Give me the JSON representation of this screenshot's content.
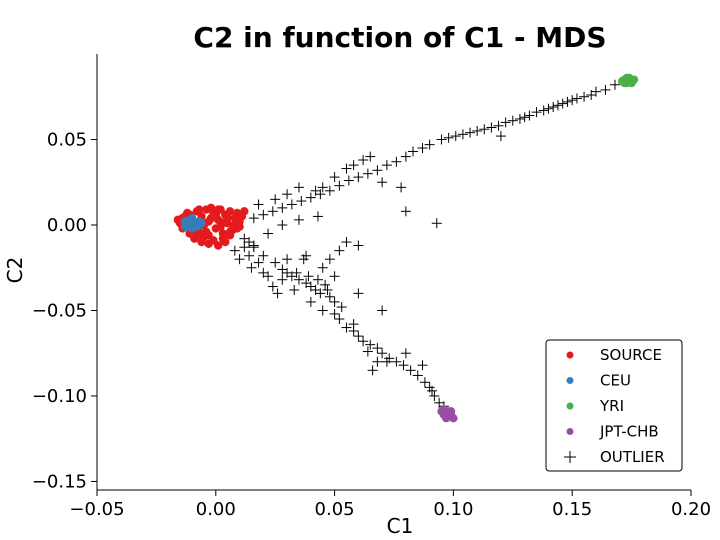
{
  "chart_data": {
    "type": "scatter",
    "title": "C2 in function of C1 - MDS",
    "xlabel": "C1",
    "ylabel": "C2",
    "xlim": [
      -0.05,
      0.2
    ],
    "ylim": [
      -0.155,
      0.1
    ],
    "xticks": [
      {
        "value": -0.05,
        "label": "−0.05"
      },
      {
        "value": 0.0,
        "label": "0.00"
      },
      {
        "value": 0.05,
        "label": "0.05"
      },
      {
        "value": 0.1,
        "label": "0.10"
      },
      {
        "value": 0.15,
        "label": "0.15"
      },
      {
        "value": 0.2,
        "label": "0.20"
      }
    ],
    "yticks": [
      {
        "value": 0.05,
        "label": "0.05"
      },
      {
        "value": 0.0,
        "label": "0.00"
      },
      {
        "value": -0.05,
        "label": "−0.05"
      },
      {
        "value": -0.1,
        "label": "−0.10"
      },
      {
        "value": -0.15,
        "label": "−0.15"
      }
    ],
    "grid": false,
    "legend_position": "bottom-right",
    "series": [
      {
        "name": "SOURCE",
        "marker": "dot",
        "color": "#e41a1c",
        "points": [
          [
            -0.016,
            0.003
          ],
          [
            -0.015,
            0.001
          ],
          [
            -0.014,
            0.004
          ],
          [
            -0.013,
            -0.001
          ],
          [
            -0.012,
            0.002
          ],
          [
            -0.011,
            0.006
          ],
          [
            -0.01,
            -0.003
          ],
          [
            -0.009,
            0.001
          ],
          [
            -0.008,
            0.008
          ],
          [
            -0.007,
            -0.004
          ],
          [
            -0.006,
            0.005
          ],
          [
            -0.005,
            0.0
          ],
          [
            -0.004,
            0.009
          ],
          [
            -0.003,
            -0.006
          ],
          [
            -0.002,
            0.004
          ],
          [
            -0.001,
            0.007
          ],
          [
            0.0,
            -0.002
          ],
          [
            0.001,
            0.003
          ],
          [
            0.002,
            0.009
          ],
          [
            0.003,
            -0.005
          ],
          [
            0.004,
            0.006
          ],
          [
            0.005,
            0.001
          ],
          [
            0.006,
            0.008
          ],
          [
            0.007,
            -0.003
          ],
          [
            0.008,
            0.004
          ],
          [
            0.009,
            0.007
          ],
          [
            0.01,
            0.002
          ],
          [
            0.011,
            0.005
          ],
          [
            0.012,
            0.008
          ],
          [
            -0.014,
            -0.002
          ],
          [
            -0.012,
            0.007
          ],
          [
            -0.01,
            0.004
          ],
          [
            -0.008,
            -0.006
          ],
          [
            -0.006,
            0.002
          ],
          [
            -0.004,
            -0.004
          ],
          [
            -0.002,
            0.01
          ],
          [
            0.0,
            0.006
          ],
          [
            0.002,
            -0.001
          ],
          [
            0.004,
            0.002
          ],
          [
            0.006,
            -0.004
          ],
          [
            0.008,
            0.0
          ],
          [
            -0.009,
            -0.008
          ],
          [
            -0.005,
            -0.007
          ],
          [
            -0.001,
            -0.009
          ],
          [
            0.003,
            -0.008
          ],
          [
            0.006,
            -0.006
          ],
          [
            -0.003,
            0.002
          ],
          [
            -0.007,
            0.009
          ],
          [
            -0.011,
            -0.005
          ],
          [
            0.001,
            0.009
          ],
          [
            0.005,
            0.004
          ],
          [
            0.009,
            -0.002
          ],
          [
            -0.013,
            0.005
          ],
          [
            -0.003,
            -0.011
          ],
          [
            0.001,
            -0.012
          ],
          [
            0.004,
            -0.01
          ],
          [
            -0.006,
            -0.01
          ],
          [
            0.01,
            -0.001
          ]
        ]
      },
      {
        "name": "CEU",
        "marker": "dot",
        "color": "#377eb8",
        "points": [
          [
            -0.013,
            0.002
          ],
          [
            -0.012,
            0.0
          ],
          [
            -0.011,
            0.003
          ],
          [
            -0.01,
            0.001
          ],
          [
            -0.01,
            -0.002
          ],
          [
            -0.009,
            0.002
          ],
          [
            -0.008,
            0.0
          ],
          [
            -0.008,
            -0.001
          ],
          [
            -0.007,
            0.002
          ],
          [
            -0.012,
            -0.001
          ],
          [
            -0.011,
            0.001
          ],
          [
            -0.009,
            -0.001
          ],
          [
            -0.01,
            0.004
          ],
          [
            -0.007,
            0.0
          ],
          [
            -0.006,
            0.001
          ],
          [
            -0.013,
            -0.001
          ]
        ]
      },
      {
        "name": "YRI",
        "marker": "dot",
        "color": "#4daf4a",
        "points": [
          [
            0.171,
            0.084
          ],
          [
            0.172,
            0.085
          ],
          [
            0.173,
            0.083
          ],
          [
            0.174,
            0.086
          ],
          [
            0.175,
            0.084
          ],
          [
            0.176,
            0.085
          ],
          [
            0.173,
            0.086
          ],
          [
            0.175,
            0.083
          ],
          [
            0.172,
            0.083
          ]
        ]
      },
      {
        "name": "JPT-CHB",
        "marker": "dot",
        "color": "#984ea3",
        "points": [
          [
            0.095,
            -0.109
          ],
          [
            0.096,
            -0.111
          ],
          [
            0.097,
            -0.11
          ],
          [
            0.098,
            -0.112
          ],
          [
            0.099,
            -0.111
          ],
          [
            0.1,
            -0.113
          ],
          [
            0.097,
            -0.113
          ],
          [
            0.098,
            -0.109
          ],
          [
            0.096,
            -0.108
          ],
          [
            0.099,
            -0.109
          ]
        ]
      },
      {
        "name": "OUTLIER",
        "marker": "plus",
        "color": "#000000",
        "points": [
          [
            0.173,
            0.085
          ],
          [
            0.168,
            0.082
          ],
          [
            0.164,
            0.079
          ],
          [
            0.16,
            0.078
          ],
          [
            0.158,
            0.076
          ],
          [
            0.155,
            0.075
          ],
          [
            0.152,
            0.074
          ],
          [
            0.15,
            0.073
          ],
          [
            0.148,
            0.072
          ],
          [
            0.146,
            0.071
          ],
          [
            0.144,
            0.07
          ],
          [
            0.142,
            0.069
          ],
          [
            0.14,
            0.068
          ],
          [
            0.138,
            0.067
          ],
          [
            0.135,
            0.066
          ],
          [
            0.132,
            0.064
          ],
          [
            0.13,
            0.063
          ],
          [
            0.128,
            0.062
          ],
          [
            0.125,
            0.061
          ],
          [
            0.122,
            0.06
          ],
          [
            0.119,
            0.058
          ],
          [
            0.116,
            0.057
          ],
          [
            0.113,
            0.056
          ],
          [
            0.11,
            0.055
          ],
          [
            0.107,
            0.054
          ],
          [
            0.104,
            0.053
          ],
          [
            0.101,
            0.052
          ],
          [
            0.098,
            0.051
          ],
          [
            0.095,
            0.05
          ],
          [
            0.12,
            0.052
          ],
          [
            0.09,
            0.047
          ],
          [
            0.087,
            0.045
          ],
          [
            0.083,
            0.043
          ],
          [
            0.08,
            0.04
          ],
          [
            0.076,
            0.037
          ],
          [
            0.072,
            0.035
          ],
          [
            0.068,
            0.032
          ],
          [
            0.064,
            0.03
          ],
          [
            0.06,
            0.028
          ],
          [
            0.056,
            0.026
          ],
          [
            0.052,
            0.023
          ],
          [
            0.048,
            0.02
          ],
          [
            0.044,
            0.018
          ],
          [
            0.04,
            0.016
          ],
          [
            0.036,
            0.014
          ],
          [
            0.032,
            0.012
          ],
          [
            0.028,
            0.01
          ],
          [
            0.024,
            0.008
          ],
          [
            0.02,
            0.006
          ],
          [
            0.016,
            0.004
          ],
          [
            0.065,
            0.04
          ],
          [
            0.062,
            0.038
          ],
          [
            0.058,
            0.035
          ],
          [
            0.055,
            0.033
          ],
          [
            0.05,
            0.028
          ],
          [
            0.045,
            0.022
          ],
          [
            0.042,
            0.02
          ],
          [
            0.035,
            0.022
          ],
          [
            0.03,
            0.018
          ],
          [
            0.025,
            0.015
          ],
          [
            0.018,
            0.012
          ],
          [
            0.07,
            0.025
          ],
          [
            0.078,
            0.022
          ],
          [
            0.08,
            0.008
          ],
          [
            0.093,
            0.001
          ],
          [
            0.055,
            -0.01
          ],
          [
            0.06,
            -0.012
          ],
          [
            0.052,
            -0.015
          ],
          [
            0.048,
            -0.02
          ],
          [
            0.038,
            -0.018
          ],
          [
            0.043,
            0.005
          ],
          [
            0.035,
            0.003
          ],
          [
            0.028,
            0.0
          ],
          [
            0.022,
            -0.005
          ],
          [
            0.016,
            -0.012
          ],
          [
            0.012,
            -0.013
          ],
          [
            0.008,
            -0.015
          ],
          [
            0.02,
            -0.018
          ],
          [
            0.025,
            -0.022
          ],
          [
            0.028,
            -0.026
          ],
          [
            0.03,
            -0.028
          ],
          [
            0.032,
            -0.03
          ],
          [
            0.035,
            -0.032
          ],
          [
            0.038,
            -0.034
          ],
          [
            0.04,
            -0.036
          ],
          [
            0.042,
            -0.038
          ],
          [
            0.044,
            -0.04
          ],
          [
            0.046,
            -0.035
          ],
          [
            0.048,
            -0.042
          ],
          [
            0.05,
            -0.045
          ],
          [
            0.047,
            -0.038
          ],
          [
            0.043,
            -0.032
          ],
          [
            0.039,
            -0.03
          ],
          [
            0.034,
            -0.028
          ],
          [
            0.028,
            -0.032
          ],
          [
            0.024,
            -0.036
          ],
          [
            0.02,
            -0.028
          ],
          [
            0.015,
            -0.025
          ],
          [
            0.01,
            -0.02
          ],
          [
            0.04,
            -0.045
          ],
          [
            0.045,
            -0.05
          ],
          [
            0.05,
            -0.052
          ],
          [
            0.052,
            -0.055
          ],
          [
            0.055,
            -0.06
          ],
          [
            0.058,
            -0.062
          ],
          [
            0.06,
            -0.065
          ],
          [
            0.062,
            -0.068
          ],
          [
            0.065,
            -0.07
          ],
          [
            0.068,
            -0.072
          ],
          [
            0.07,
            -0.075
          ],
          [
            0.073,
            -0.078
          ],
          [
            0.076,
            -0.08
          ],
          [
            0.079,
            -0.082
          ],
          [
            0.082,
            -0.085
          ],
          [
            0.085,
            -0.088
          ],
          [
            0.088,
            -0.092
          ],
          [
            0.09,
            -0.095
          ],
          [
            0.092,
            -0.1
          ],
          [
            0.094,
            -0.104
          ],
          [
            0.096,
            -0.106
          ],
          [
            0.08,
            -0.075
          ],
          [
            0.068,
            -0.08
          ],
          [
            0.058,
            -0.058
          ],
          [
            0.053,
            -0.048
          ],
          [
            0.06,
            -0.04
          ],
          [
            0.033,
            -0.038
          ],
          [
            0.064,
            -0.074
          ],
          [
            0.072,
            -0.08
          ],
          [
            0.066,
            -0.085
          ],
          [
            0.087,
            -0.082
          ],
          [
            0.091,
            -0.097
          ],
          [
            0.07,
            -0.05
          ],
          [
            0.05,
            -0.03
          ],
          [
            0.045,
            -0.025
          ],
          [
            0.037,
            -0.02
          ],
          [
            0.03,
            -0.02
          ],
          [
            0.026,
            -0.04
          ],
          [
            0.022,
            -0.03
          ],
          [
            0.018,
            -0.022
          ],
          [
            0.014,
            -0.018
          ],
          [
            0.012,
            -0.008
          ],
          [
            0.014,
            -0.01
          ],
          [
            0.016,
            -0.013
          ]
        ]
      }
    ]
  }
}
